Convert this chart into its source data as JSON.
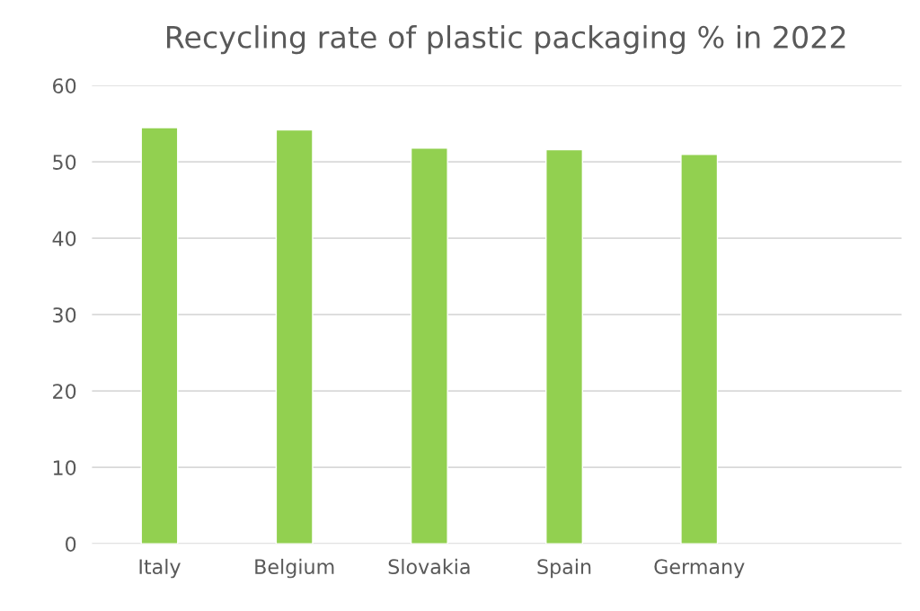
{
  "chart_data": {
    "type": "bar",
    "title": "Recycling rate of plastic packaging % in 2022",
    "categories": [
      "Italy",
      "Belgium",
      "Slovakia",
      "Spain",
      "Germany",
      null
    ],
    "values": [
      54.5,
      54.2,
      51.8,
      51.6,
      51.0,
      null
    ],
    "color": "#92d050",
    "ylim": [
      0,
      60
    ],
    "yticks": [
      0,
      10,
      20,
      30,
      40,
      50,
      60
    ],
    "grid": "y"
  }
}
